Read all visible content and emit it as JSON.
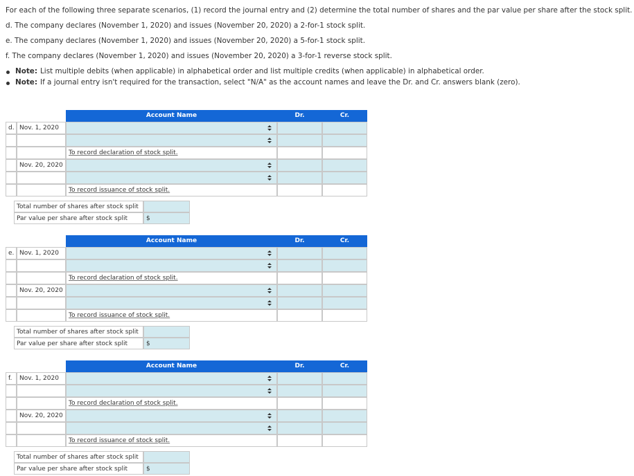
{
  "intro": "For each of the following three separate scenarios, (1) record the journal entry and (2) determine the total number of shares and the par value per share after the stock split.",
  "scenarios": [
    "d. The company declares (November 1, 2020) and issues (November 20, 2020) a 2-for-1 stock split.",
    "e. The company declares (November 1, 2020) and issues (November 20, 2020) a 5-for-1 stock split.",
    "f. The company declares (November 1, 2020) and issues (November 20, 2020) a 3-for-1 reverse stock split."
  ],
  "notes": [
    {
      "label": "Note:",
      "text": "List multiple debits (when applicable) in alphabetical order and list multiple credits (when applicable) in alphabetical order."
    },
    {
      "label": "Note:",
      "text": "If a journal entry isn't required for the transaction, select \"N/A\" as the account names and leave the Dr. and Cr. answers blank (zero)."
    }
  ],
  "tables": [
    {
      "header": {
        "account": "Account Name",
        "dr": "Dr.",
        "cr": "Cr."
      },
      "label": "d.",
      "date1": "Nov. 1, 2020",
      "memo1": "To record declaration of stock split.",
      "date2": "Nov. 20, 2020",
      "memo2": "To record issuance of stock split.",
      "shares_label": "Total number of shares after stock split",
      "par_label": "Par value per share after stock split",
      "currency": "$"
    },
    {
      "header": {
        "account": "Account Name",
        "dr": "Dr.",
        "cr": "Cr."
      },
      "label": "e.",
      "date1": "Nov. 1, 2020",
      "memo1": "To record declaration of stock split.",
      "date2": "Nov. 20, 2020",
      "memo2": "To record issuance of stock split.",
      "shares_label": "Total number of shares after stock split",
      "par_label": "Par value per share after stock split",
      "currency": "$"
    },
    {
      "header": {
        "account": "Account Name",
        "dr": "Dr.",
        "cr": "Cr."
      },
      "label": "f.",
      "date1": "Nov. 1, 2020",
      "memo1": "To record declaration of stock split.",
      "date2": "Nov. 20, 2020",
      "memo2": "To record issuance of stock split.",
      "shares_label": "Total number of shares after stock split",
      "par_label": "Par value per share after stock split",
      "currency": "$"
    }
  ]
}
